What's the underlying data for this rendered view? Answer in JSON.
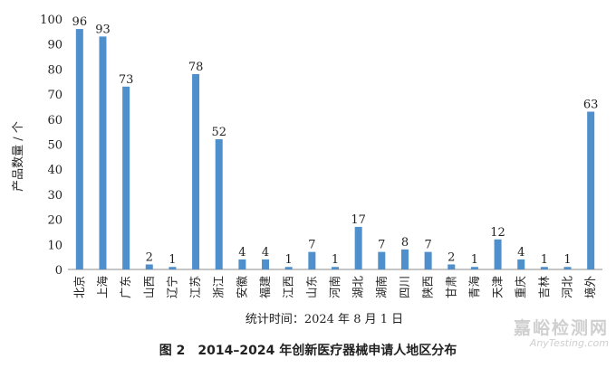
{
  "chart_data": {
    "type": "bar",
    "categories": [
      "北京",
      "上海",
      "广东",
      "山西",
      "辽宁",
      "江苏",
      "浙江",
      "安徽",
      "福建",
      "江西",
      "山东",
      "河南",
      "湖北",
      "湖南",
      "四川",
      "陕西",
      "甘肃",
      "青海",
      "天津",
      "重庆",
      "吉林",
      "河北",
      "境外"
    ],
    "values": [
      96,
      93,
      73,
      2,
      1,
      78,
      52,
      4,
      4,
      1,
      7,
      1,
      17,
      7,
      8,
      7,
      2,
      1,
      12,
      4,
      1,
      1,
      63
    ],
    "ylim": [
      0,
      100
    ],
    "yticks": [
      0,
      10,
      20,
      30,
      40,
      50,
      60,
      70,
      80,
      90,
      100
    ],
    "ylabel": "产品数量 / 个",
    "xlabel": "统计时间：2024 年 8 月 1 日",
    "title": "图 2　2014–2024 年创新医疗器械申请人地区分布",
    "bar_color": "#4f8fcc",
    "grid": false
  },
  "watermark": {
    "text_cn": "嘉峪检测网",
    "text_en": "AnyTesting.com"
  }
}
